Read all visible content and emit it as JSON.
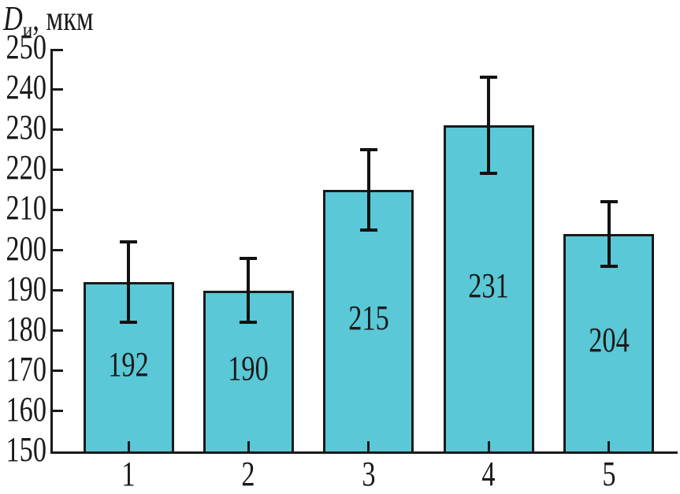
{
  "figure": {
    "axis_title": {
      "symbol": "D",
      "subscript": "и",
      "unit": ", мкм"
    }
  },
  "chart_data": {
    "type": "bar",
    "title": "",
    "ylabel": "Dи, мкм",
    "xlabel": "",
    "categories": [
      "1",
      "2",
      "3",
      "4",
      "5"
    ],
    "values": [
      192,
      190,
      215,
      231,
      204
    ],
    "errors": [
      10,
      8,
      10,
      12,
      8
    ],
    "bar_labels": [
      "192",
      "190",
      "215",
      "231",
      "204"
    ],
    "ylim": [
      150,
      250
    ],
    "ytick_step": 10,
    "yticks": [
      150,
      160,
      170,
      180,
      190,
      200,
      210,
      220,
      230,
      240,
      250
    ],
    "grid": false,
    "legend_position": "none",
    "colors": {
      "bar_fill": "#5ac8d6",
      "bar_border": "#1a1a1a",
      "error_bar": "#111111",
      "axis": "#1a1a1a",
      "text": "#1a1a1a"
    }
  }
}
